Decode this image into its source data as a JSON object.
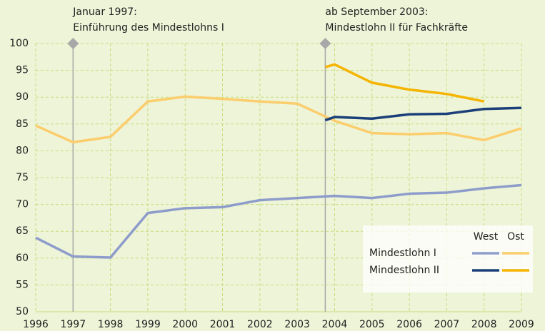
{
  "chart_data": {
    "type": "line",
    "annotations": [
      {
        "x": 1997,
        "lines": [
          "Januar 1997:",
          "Einführung des Mindestlohns I"
        ]
      },
      {
        "x": 2003.75,
        "lines": [
          "ab September 2003:",
          "Mindestlohn II für Fachkräfte"
        ]
      }
    ],
    "xlim": [
      1996,
      2009
    ],
    "xticks": [
      1996,
      1997,
      1998,
      1999,
      2000,
      2001,
      2002,
      2003,
      2004,
      2005,
      2006,
      2007,
      2008,
      2009
    ],
    "ylim": [
      50,
      100
    ],
    "yticks": [
      50,
      55,
      60,
      65,
      70,
      75,
      80,
      85,
      90,
      95,
      100
    ],
    "grid": true,
    "legend": "bottom-right",
    "series": [
      {
        "name": "Mindestlohn I",
        "group": "West",
        "color": "#8e9ccb",
        "x": [
          1996,
          1997,
          1998,
          1999,
          2000,
          2001,
          2002,
          2003,
          2004,
          2005,
          2006,
          2007,
          2008,
          2009
        ],
        "values": [
          63.8,
          60.3,
          60.1,
          68.4,
          69.3,
          69.5,
          70.8,
          71.2,
          71.6,
          71.2,
          72.0,
          72.2,
          73.0,
          73.6
        ]
      },
      {
        "name": "Mindestlohn I",
        "group": "Ost",
        "color": "#fbcd6c",
        "x": [
          1996,
          1997,
          1998,
          1999,
          2000,
          2001,
          2002,
          2003,
          2004,
          2005,
          2006,
          2007,
          2008,
          2009
        ],
        "values": [
          84.7,
          81.6,
          82.6,
          89.2,
          90.1,
          89.7,
          89.2,
          88.8,
          85.6,
          83.3,
          83.1,
          83.3,
          82.0,
          84.2
        ]
      },
      {
        "name": "Mindestlohn II",
        "group": "West",
        "color": "#1b3f78",
        "x": [
          2003.75,
          2004,
          2005,
          2006,
          2007,
          2008,
          2009
        ],
        "values": [
          85.7,
          86.3,
          86.0,
          86.8,
          86.9,
          87.8,
          88.0
        ]
      },
      {
        "name": "Mindestlohn II",
        "group": "Ost",
        "color": "#f4b400",
        "x": [
          2003.75,
          2004,
          2005,
          2006,
          2007,
          2008
        ],
        "values": [
          95.6,
          96.1,
          92.7,
          91.4,
          90.6,
          89.2
        ]
      }
    ]
  }
}
